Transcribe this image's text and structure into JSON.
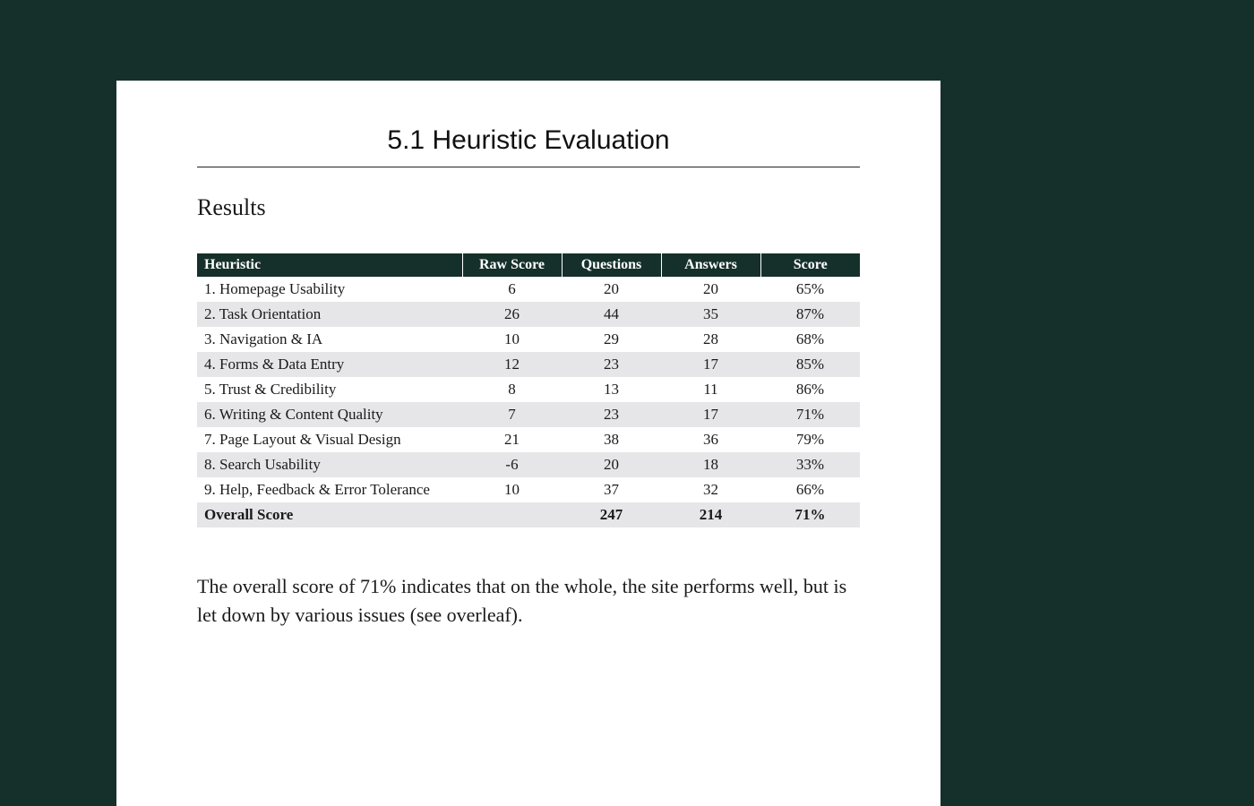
{
  "page": {
    "background_color": "#15302a",
    "paper_color": "#ffffff",
    "section_title": "5.1 Heuristic Evaluation",
    "subheading": "Results",
    "body_text": "The overall score of 71% indicates that on the whole, the site performs well, but is let down by various issues (see overleaf)."
  },
  "table": {
    "type": "table",
    "header_bg": "#15302a",
    "header_fg": "#ffffff",
    "row_odd_bg": "#ffffff",
    "row_even_bg": "#e6e6e8",
    "font_family": "Bembo / Times New Roman serif",
    "body_fontsize": 17,
    "header_fontsize": 16,
    "columns": [
      {
        "key": "heuristic",
        "label": "Heuristic",
        "align": "left",
        "width_pct": 40
      },
      {
        "key": "raw",
        "label": "Raw Score",
        "align": "center",
        "width_pct": 15
      },
      {
        "key": "questions",
        "label": "Questions",
        "align": "center",
        "width_pct": 15
      },
      {
        "key": "answers",
        "label": "Answers",
        "align": "center",
        "width_pct": 15
      },
      {
        "key": "score",
        "label": "Score",
        "align": "center",
        "width_pct": 15
      }
    ],
    "rows": [
      {
        "heuristic": "1. Homepage Usability",
        "raw": "6",
        "questions": "20",
        "answers": "20",
        "score": "65%"
      },
      {
        "heuristic": "2. Task Orientation",
        "raw": "26",
        "questions": "44",
        "answers": "35",
        "score": "87%"
      },
      {
        "heuristic": "3. Navigation & IA",
        "raw": "10",
        "questions": "29",
        "answers": "28",
        "score": "68%"
      },
      {
        "heuristic": "4. Forms & Data Entry",
        "raw": "12",
        "questions": "23",
        "answers": "17",
        "score": "85%"
      },
      {
        "heuristic": "5. Trust & Credibility",
        "raw": "8",
        "questions": "13",
        "answers": "11",
        "score": "86%"
      },
      {
        "heuristic": "6. Writing & Content Quality",
        "raw": "7",
        "questions": "23",
        "answers": "17",
        "score": "71%"
      },
      {
        "heuristic": "7. Page Layout & Visual Design",
        "raw": "21",
        "questions": "38",
        "answers": "36",
        "score": "79%"
      },
      {
        "heuristic": "8. Search Usability",
        "raw": "-6",
        "questions": "20",
        "answers": "18",
        "score": "33%"
      },
      {
        "heuristic": "9. Help, Feedback & Error Tolerance",
        "raw": "10",
        "questions": "37",
        "answers": "32",
        "score": "66%"
      }
    ],
    "total_row": {
      "heuristic": "Overall Score",
      "raw": "",
      "questions": "247",
      "answers": "214",
      "score": "71%"
    }
  }
}
